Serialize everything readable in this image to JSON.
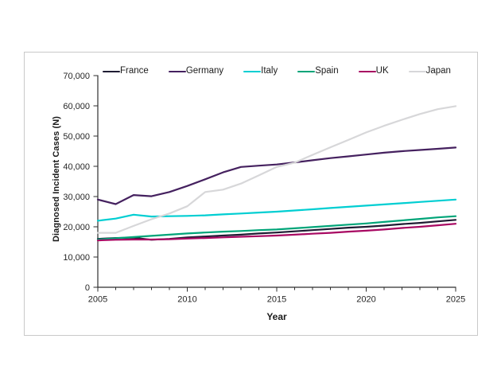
{
  "figure": {
    "background_color": "#ffffff",
    "border_color": "#c9c9c9",
    "axis_color": "#2e2e2e",
    "tick_label_color": "#262626"
  },
  "chart_data": {
    "type": "line",
    "title": "",
    "xlabel": "Year",
    "ylabel": "Diagnosed Incident Cases (N)",
    "xlim": [
      2005,
      2025
    ],
    "ylim": [
      0,
      70000
    ],
    "grid": false,
    "legend_position": "top",
    "x_ticks": [
      2005,
      2010,
      2015,
      2020,
      2025
    ],
    "x_minor_tick_interval": 1,
    "y_ticks": [
      0,
      10000,
      20000,
      30000,
      40000,
      50000,
      60000,
      70000
    ],
    "y_tick_labels": [
      "0",
      "10,000",
      "20,000",
      "30,000",
      "40,000",
      "50,000",
      "60,000",
      "70,000"
    ],
    "x": [
      2005,
      2006,
      2007,
      2008,
      2009,
      2010,
      2011,
      2012,
      2013,
      2014,
      2015,
      2016,
      2017,
      2018,
      2019,
      2020,
      2021,
      2022,
      2023,
      2024,
      2025
    ],
    "series": [
      {
        "name": "France",
        "color": "#1f1c33",
        "values": [
          16000,
          16300,
          16400,
          15700,
          16000,
          16500,
          16800,
          17100,
          17400,
          17800,
          18100,
          18500,
          18900,
          19300,
          19700,
          20000,
          20400,
          20900,
          21300,
          21800,
          22300
        ]
      },
      {
        "name": "Germany",
        "color": "#45215f",
        "values": [
          29000,
          27500,
          30500,
          30100,
          31500,
          33500,
          35700,
          38000,
          39800,
          40200,
          40600,
          41300,
          42000,
          42700,
          43300,
          43900,
          44500,
          45000,
          45400,
          45800,
          46200
        ]
      },
      {
        "name": "Italy",
        "color": "#00ced2",
        "values": [
          22000,
          22700,
          24000,
          23400,
          23500,
          23600,
          23800,
          24100,
          24400,
          24700,
          25000,
          25400,
          25800,
          26200,
          26600,
          27000,
          27400,
          27800,
          28200,
          28600,
          29000
        ]
      },
      {
        "name": "Spain",
        "color": "#00a478",
        "values": [
          15800,
          16200,
          16600,
          17000,
          17400,
          17800,
          18100,
          18400,
          18600,
          18900,
          19100,
          19500,
          19900,
          20300,
          20700,
          21100,
          21600,
          22100,
          22600,
          23100,
          23500
        ]
      },
      {
        "name": "UK",
        "color": "#a80862",
        "values": [
          15500,
          15700,
          15800,
          15800,
          15900,
          16100,
          16300,
          16500,
          16700,
          16900,
          17100,
          17400,
          17700,
          18000,
          18400,
          18700,
          19100,
          19600,
          20000,
          20500,
          21000
        ]
      },
      {
        "name": "Japan",
        "color": "#d7d7d9",
        "values": [
          18000,
          18000,
          20300,
          22500,
          24400,
          26800,
          31500,
          32300,
          34300,
          37000,
          39800,
          41200,
          43800,
          46300,
          48700,
          51200,
          53400,
          55400,
          57300,
          58900,
          59900
        ]
      }
    ]
  }
}
